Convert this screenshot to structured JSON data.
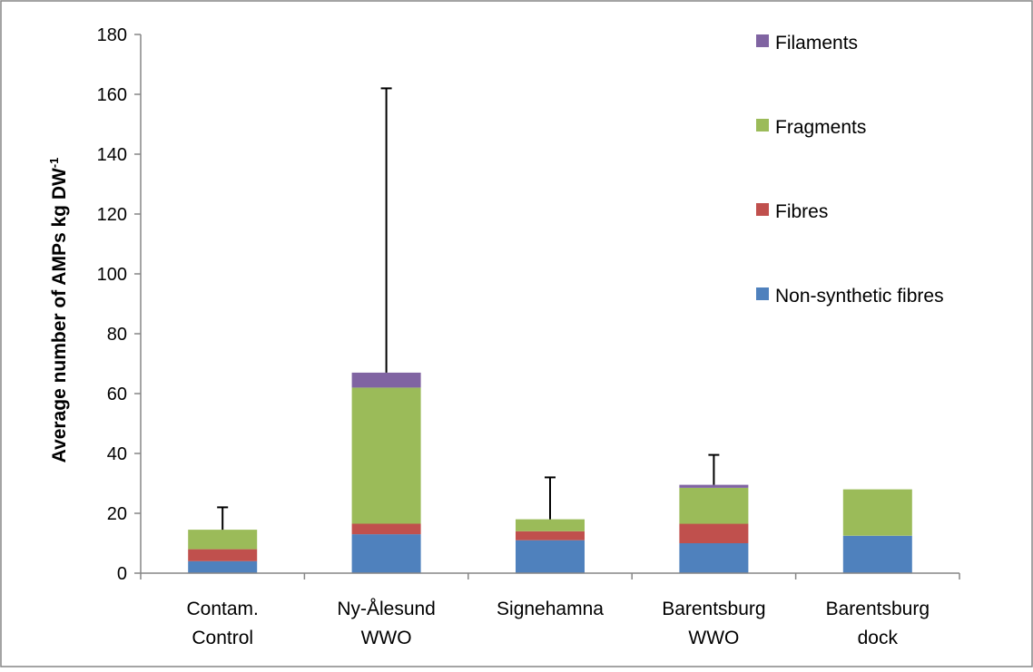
{
  "chart_data": {
    "type": "bar",
    "stacked": true,
    "title": "",
    "xlabel": "",
    "ylabel": "Average number of AMPs kg DW",
    "ylabel_superscript": "-1",
    "ylim": [
      0,
      180
    ],
    "yticks": [
      "0",
      "20",
      "40",
      "60",
      "80",
      "100",
      "120",
      "140",
      "160",
      "180"
    ],
    "grid": false,
    "legend_position": "right",
    "categories": [
      [
        "Contam.",
        "Control"
      ],
      [
        "Ny-Ålesund",
        "WWO"
      ],
      [
        "Signehamna"
      ],
      [
        "Barentsburg",
        "WWO"
      ],
      [
        "Barentsburg",
        "dock"
      ]
    ],
    "series": [
      {
        "name": "Non-synthetic fibres",
        "color": "#4f81bd",
        "values": [
          4,
          13,
          11,
          10,
          12.5
        ]
      },
      {
        "name": "Fibres",
        "color": "#c0504d",
        "values": [
          4,
          3.5,
          3,
          6.5,
          0
        ]
      },
      {
        "name": "Fragments",
        "color": "#9bbb59",
        "values": [
          6.5,
          45.5,
          4,
          12,
          15.5
        ]
      },
      {
        "name": "Filaments",
        "color": "#8064a2",
        "values": [
          0,
          5,
          0,
          1,
          0
        ]
      }
    ],
    "error_bars": [
      22,
      162,
      32,
      39.5,
      null
    ]
  }
}
